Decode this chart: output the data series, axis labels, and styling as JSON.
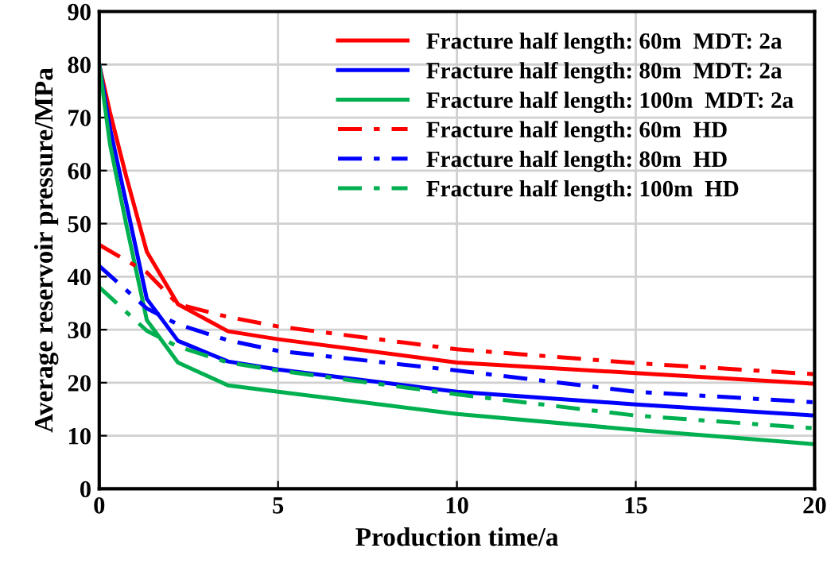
{
  "chart_data": {
    "type": "line",
    "xlabel": "Production time/a",
    "ylabel": "Average reservoir pressure/MPa",
    "xlim": [
      0,
      20
    ],
    "xticks": [
      0,
      5,
      10,
      15,
      20
    ],
    "ylim": [
      0,
      90
    ],
    "yticks": [
      0,
      10,
      20,
      30,
      40,
      50,
      60,
      70,
      80,
      90
    ],
    "grid": true,
    "legend": "top right",
    "marker": "none",
    "series": [
      {
        "name": "Fracture half length: 60m  MDT: 2a",
        "color": "#ff0000",
        "line_style": "solid",
        "x": [
          0,
          0.3,
          0.75,
          1.33,
          2.2,
          3.6,
          5,
          10,
          15,
          20
        ],
        "values": [
          80,
          71,
          59,
          44.7,
          34.8,
          29.7,
          28.2,
          23.8,
          21.8,
          19.8
        ]
      },
      {
        "name": "Fracture half length: 80m  MDT: 2a",
        "color": "#0000ff",
        "line_style": "solid",
        "x": [
          0,
          0.3,
          0.75,
          1.33,
          2.2,
          3.6,
          5,
          10,
          15,
          20
        ],
        "values": [
          80,
          68,
          54,
          35.8,
          27.9,
          24,
          22.5,
          18.3,
          15.9,
          13.8
        ]
      },
      {
        "name": "Fracture half length: 100m  MDT: 2a",
        "color": "#00b050",
        "line_style": "solid",
        "x": [
          0,
          0.3,
          0.75,
          1.33,
          2.2,
          3.6,
          5,
          10,
          15,
          20
        ],
        "values": [
          80,
          65,
          50,
          31.8,
          23.8,
          19.5,
          18.3,
          14.1,
          11.1,
          8.4
        ]
      },
      {
        "name": "Fracture half length: 60m  HD",
        "color": "#ff0000",
        "line_style": "dashdot",
        "x": [
          0,
          1.33,
          2.2,
          3.6,
          5,
          10,
          15,
          20
        ],
        "values": [
          46,
          40.8,
          34.8,
          32.4,
          30.6,
          26.3,
          23.7,
          21.6
        ]
      },
      {
        "name": "Fracture half length: 80m  HD",
        "color": "#0000ff",
        "line_style": "dashdot",
        "x": [
          0,
          1.33,
          2.2,
          3.6,
          5,
          10,
          15,
          20
        ],
        "values": [
          42,
          34,
          31,
          28,
          26,
          22.3,
          18.3,
          16.3
        ]
      },
      {
        "name": "Fracture half length: 100m  HD",
        "color": "#00b050",
        "line_style": "dashdot",
        "x": [
          0,
          1.33,
          2.2,
          3.6,
          5,
          10,
          15,
          20
        ],
        "values": [
          38,
          29.8,
          26.8,
          23.8,
          22.3,
          17.8,
          13.8,
          11.4
        ]
      }
    ]
  }
}
